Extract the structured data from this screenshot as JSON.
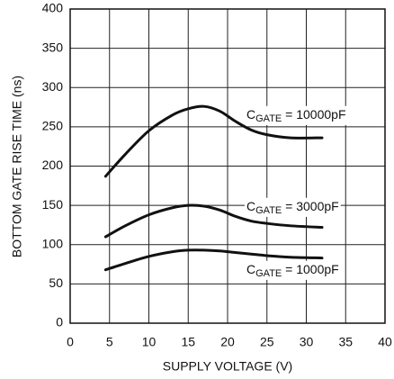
{
  "chart_data": {
    "type": "line",
    "x_label": "SUPPLY  VOLTAGE (V)",
    "y_label": "BOTTOM GATE RISE TIME (ns)",
    "x": [
      4.5,
      7,
      10,
      13,
      15,
      17,
      19,
      21,
      23,
      25,
      28,
      32
    ],
    "series": [
      {
        "name": "C",
        "name_sub": "GATE",
        "name_rest": " = 10000pF",
        "color": "#111111",
        "values": [
          187,
          215,
          245,
          265,
          273,
          276,
          270,
          257,
          246,
          240,
          236,
          236
        ]
      },
      {
        "name": "C",
        "name_sub": "GATE",
        "name_rest": " = 3000pF",
        "color": "#111111",
        "values": [
          110,
          124,
          138,
          147,
          150,
          149,
          144,
          136,
          130,
          127,
          124,
          122
        ]
      },
      {
        "name": "C",
        "name_sub": "GATE",
        "name_rest": " = 1000pF",
        "color": "#111111",
        "values": [
          68,
          76,
          85,
          91,
          93,
          93,
          92,
          90,
          88,
          86,
          84,
          83
        ]
      }
    ],
    "xlim": [
      0,
      40
    ],
    "xticks": [
      0,
      5,
      10,
      15,
      20,
      25,
      30,
      35,
      40
    ],
    "ylim": [
      0,
      400
    ],
    "yticks": [
      0,
      50,
      100,
      150,
      200,
      250,
      300,
      350,
      400
    ],
    "grid": true
  }
}
